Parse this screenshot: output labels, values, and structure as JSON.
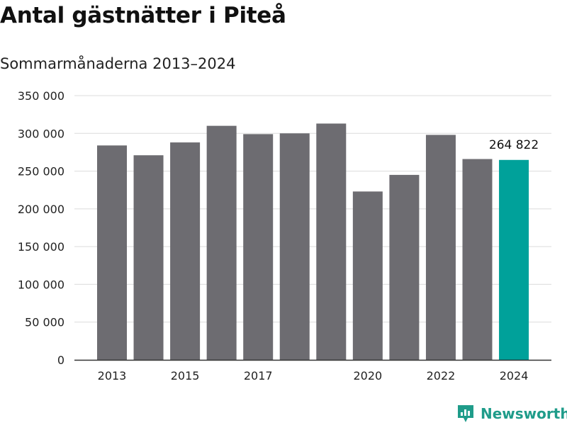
{
  "header": {
    "title": "Antal gästnätter i Piteå",
    "subtitle": "Sommarmånaderna 2013–2024"
  },
  "brand": {
    "name": "Newsworthy",
    "icon": "newsworthy-logo-icon",
    "color": "#1f9c8a"
  },
  "chart_data": {
    "type": "bar",
    "categories": [
      "2013",
      "2014",
      "2015",
      "2016",
      "2017",
      "2018",
      "2019",
      "2020",
      "2021",
      "2022",
      "2023",
      "2024"
    ],
    "values": [
      284000,
      271000,
      288000,
      310000,
      299000,
      300000,
      313000,
      223000,
      245000,
      298000,
      266000,
      264822
    ],
    "x_tick_labels": [
      "2013",
      "",
      "2015",
      "",
      "2017",
      "",
      "",
      "2020",
      "",
      "2022",
      "",
      "2024"
    ],
    "y_ticks": [
      0,
      50000,
      100000,
      150000,
      200000,
      250000,
      300000,
      350000
    ],
    "y_tick_labels": [
      "0",
      "50 000",
      "100 000",
      "150 000",
      "200 000",
      "250 000",
      "300 000",
      "350 000"
    ],
    "ylim": [
      0,
      350000
    ],
    "highlight_index": 11,
    "data_labels": [
      {
        "index": 11,
        "text": "264 822"
      }
    ],
    "grid": true,
    "colors": {
      "bar": "#6d6c71",
      "highlight": "#00a19a",
      "grid": "#dcdcdc",
      "axis": "#333333"
    }
  }
}
